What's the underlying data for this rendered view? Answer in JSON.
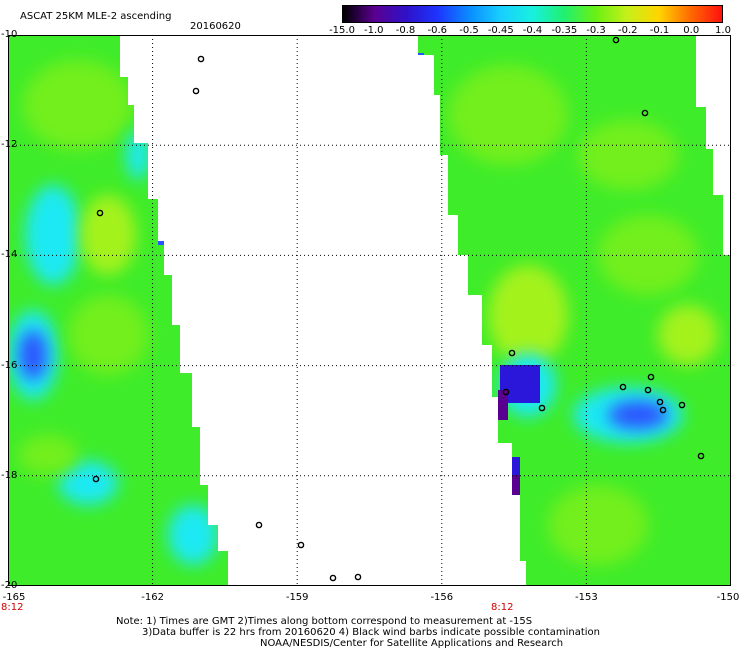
{
  "title": "ASCAT 25KM MLE-2 ascending",
  "date": "20160620",
  "colorbar": {
    "labels": [
      "-15.0",
      "-1.0",
      "-0.8",
      "-0.6",
      "-0.5",
      "-0.45",
      "-0.4",
      "-0.35",
      "-0.3",
      "-0.2",
      "-0.1",
      "0.0",
      "1.0"
    ],
    "colors": [
      "#000000",
      "#5a0090",
      "#2f12c8",
      "#1d34ff",
      "#0a8cff",
      "#18cfff",
      "#18f0df",
      "#20f070",
      "#6af014",
      "#c6f01a",
      "#ffd500",
      "#ff6a00",
      "#ff1010"
    ]
  },
  "y_ticks": [
    "-10",
    "-12",
    "-14",
    "-16",
    "-18",
    "-20"
  ],
  "x_ticks": [
    "-165",
    "-162",
    "-159",
    "-156",
    "-153",
    "-150"
  ],
  "time_labels": [
    "8:12",
    "8:12"
  ],
  "note_lines": [
    "Note: 1) Times are GMT 2)Times along bottom correspond to measurement at -15S",
    "3)Data buffer is 22 hrs from 20160620 4) Black wind barbs indicate possible contamination",
    "NOAA/NESDIS/Center for Satellite Applications and Research"
  ],
  "map": {
    "lon_range": [
      -165,
      -150
    ],
    "lat_range": [
      -20,
      -10
    ],
    "colors": {
      "base_green": "#3fec2a",
      "light_green": "#72ef1f",
      "yellow_green": "#a4f21c",
      "cyan": "#1de9f3",
      "light_blue": "#1a9cff",
      "blue": "#2d52ff",
      "deep_blue": "#2a17d9",
      "purple": "#5a0090",
      "land": "#000000"
    }
  }
}
